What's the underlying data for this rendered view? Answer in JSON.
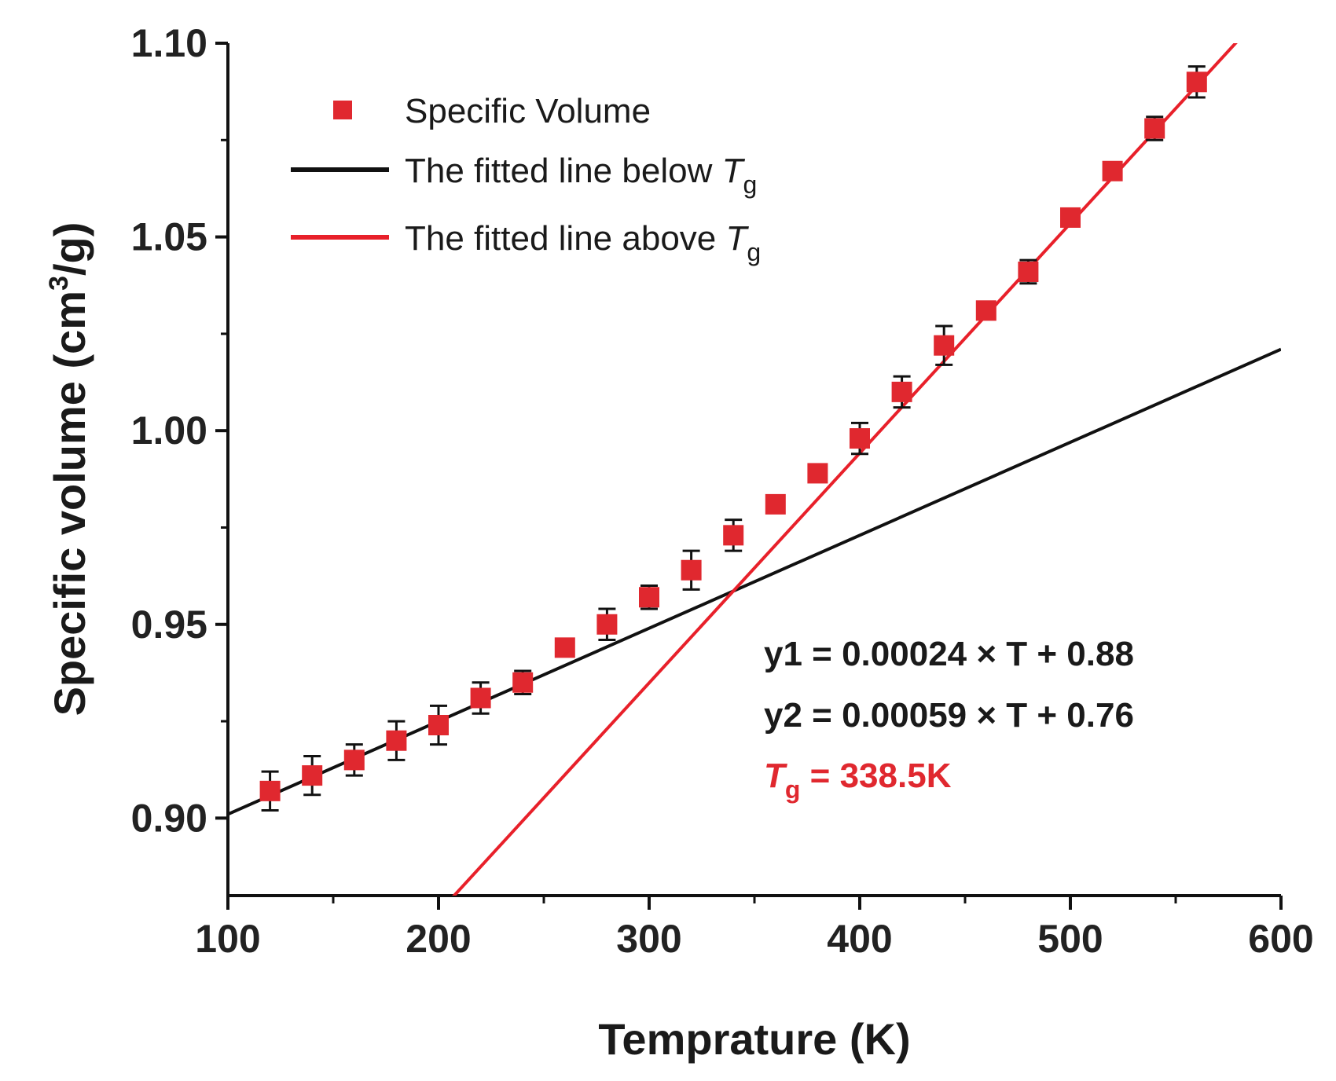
{
  "colors": {
    "marker": "#e0282f",
    "fit_above": "#e8202a",
    "fit_below": "#111111",
    "axis": "#111111",
    "tg_text": "#e0282f"
  },
  "chart_data": {
    "type": "scatter",
    "title": "",
    "xlabel": "Temprature (K)",
    "ylabel": "Specific volume (cm3/g)",
    "ylabel_parts": {
      "main": "Specific volume (cm",
      "sup": "3",
      "tail": "/g)"
    },
    "xlim": [
      100,
      600
    ],
    "ylim": [
      0.88,
      1.1
    ],
    "x_ticks": [
      100,
      200,
      300,
      400,
      500,
      600
    ],
    "x_tick_labels": [
      "100",
      "200",
      "300",
      "400",
      "500",
      "600"
    ],
    "y_ticks": [
      0.9,
      0.95,
      1.0,
      1.05,
      1.1
    ],
    "y_tick_labels": [
      "0.90",
      "0.95",
      "1.00",
      "1.05",
      "1.10"
    ],
    "grid": false,
    "series": [
      {
        "name": "Specific Volume",
        "kind": "markers_with_error",
        "x": [
          120,
          140,
          160,
          180,
          200,
          220,
          240,
          260,
          280,
          300,
          320,
          340,
          360,
          380,
          400,
          420,
          440,
          460,
          480,
          500,
          520,
          540,
          560
        ],
        "y": [
          0.907,
          0.911,
          0.915,
          0.92,
          0.924,
          0.931,
          0.935,
          0.944,
          0.95,
          0.957,
          0.964,
          0.973,
          0.981,
          0.989,
          0.998,
          1.01,
          1.022,
          1.031,
          1.041,
          1.055,
          1.067,
          1.078,
          1.09
        ],
        "yerr": [
          0.005,
          0.005,
          0.004,
          0.005,
          0.005,
          0.004,
          0.003,
          0.002,
          0.004,
          0.003,
          0.005,
          0.004,
          0.002,
          0.002,
          0.004,
          0.004,
          0.005,
          0.002,
          0.003,
          0.002,
          0.002,
          0.003,
          0.004
        ]
      },
      {
        "name": "The fitted line below ",
        "name_italic": "T",
        "name_sub": "g",
        "kind": "line",
        "slope": 0.00024,
        "intercept": 0.877,
        "x_range": [
          100,
          600
        ]
      },
      {
        "name": "The fitted line above ",
        "name_italic": "T",
        "name_sub": "g",
        "kind": "line",
        "slope": 0.000593,
        "intercept": 0.757,
        "x_range": [
          200,
          600
        ]
      }
    ],
    "legend_position": "top-left",
    "annotations": [
      {
        "id": "eq1",
        "text": "y1 = 0.00024 × T + 0.88"
      },
      {
        "id": "eq2",
        "text": "y2 = 0.00059 × T + 0.76"
      },
      {
        "id": "tg",
        "italic": "T",
        "sub": "g",
        "text": " = 338.5K"
      }
    ]
  }
}
